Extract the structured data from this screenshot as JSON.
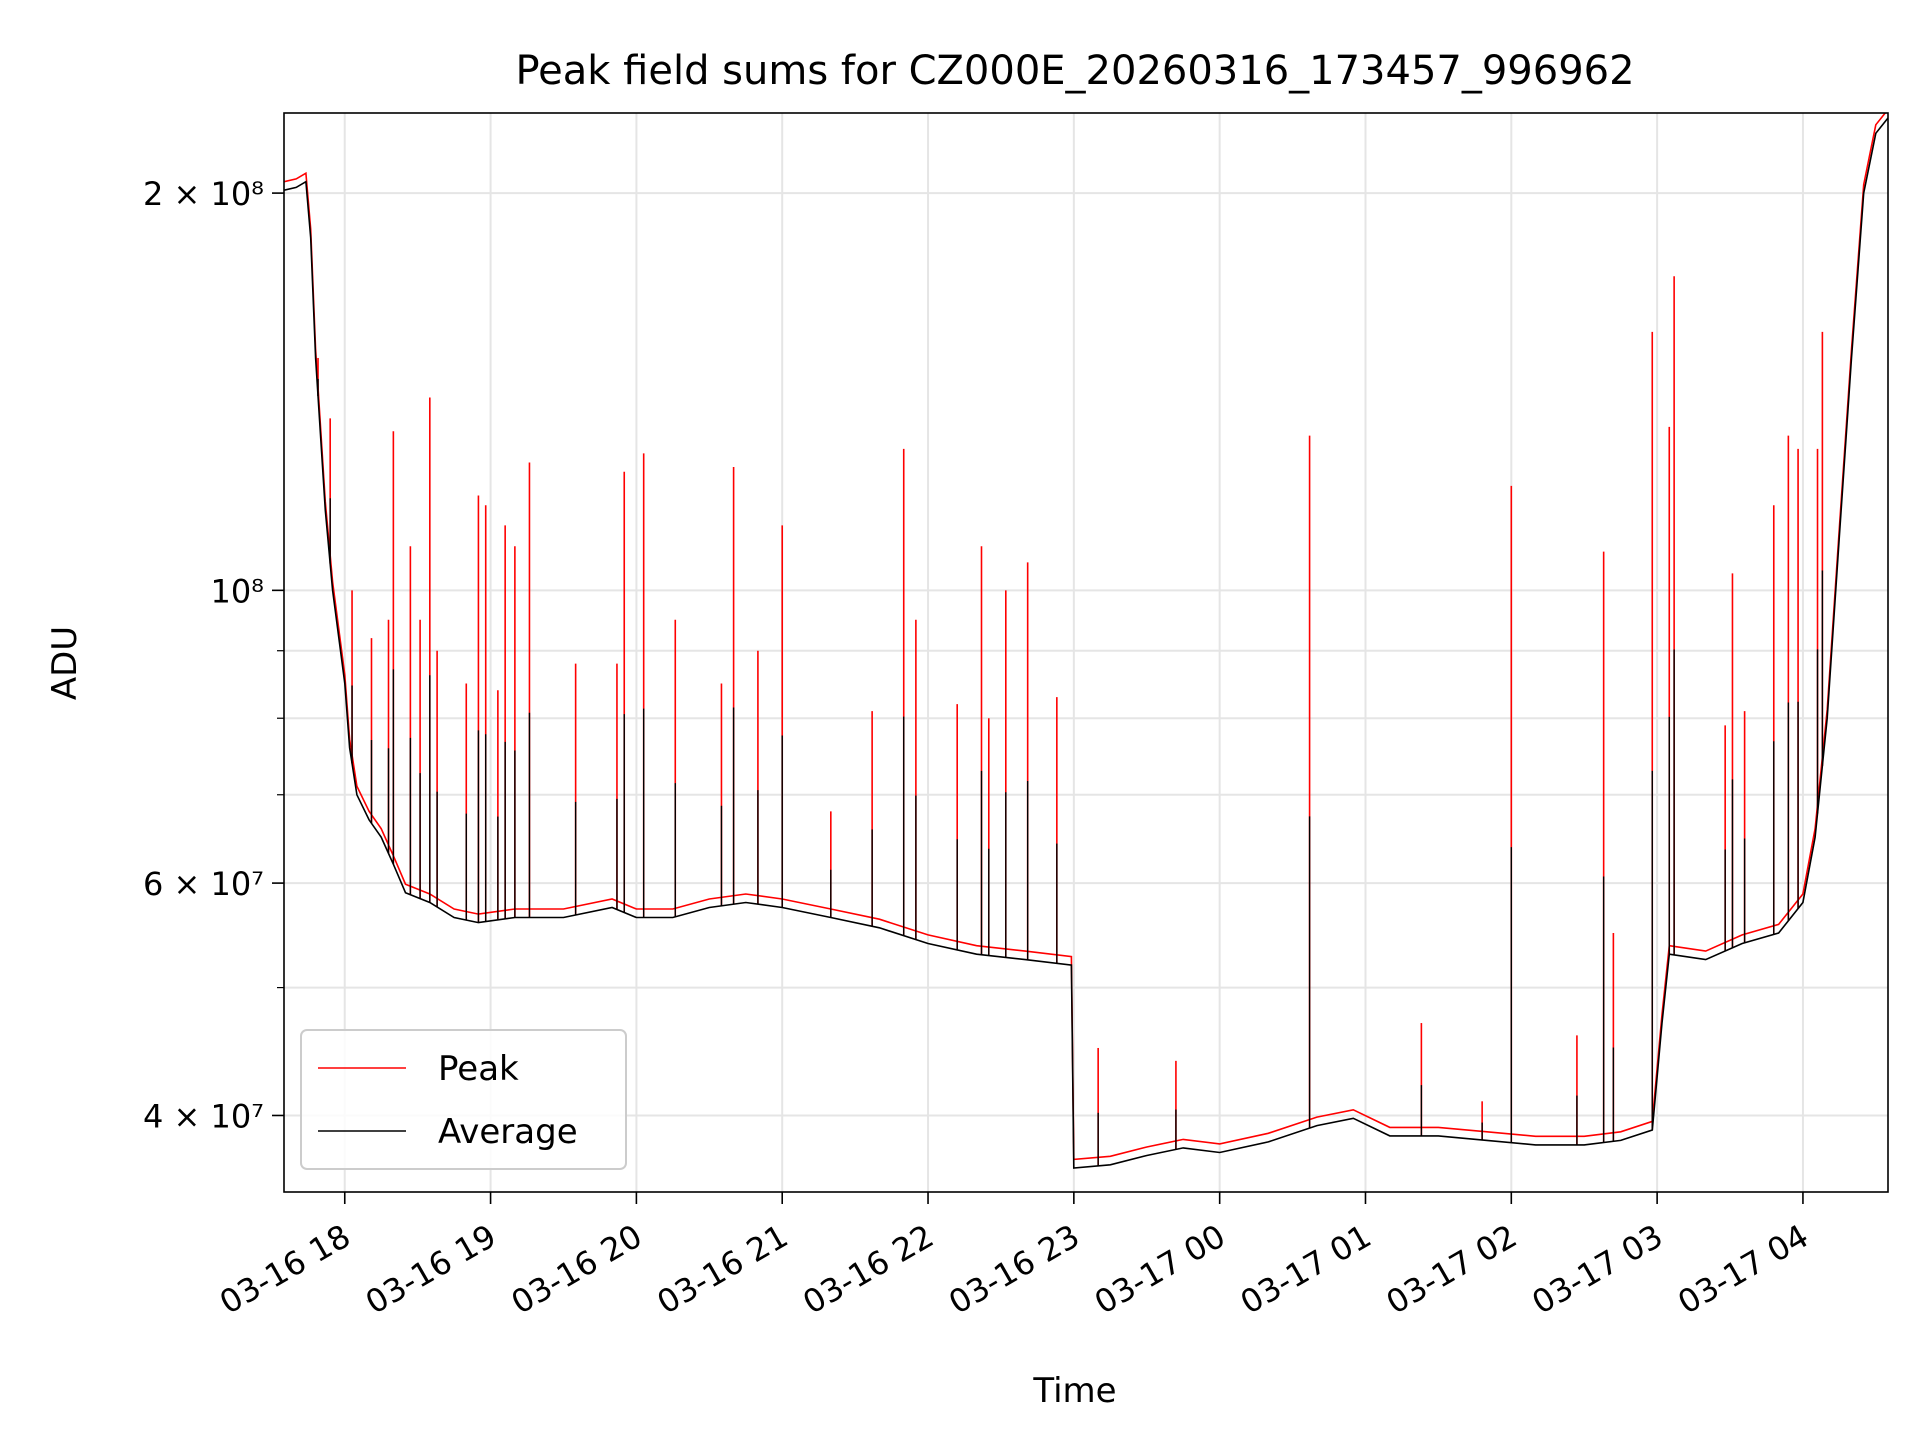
{
  "chart_data": {
    "type": "line",
    "title": "Peak field sums for CZ000E_20260316_173457_996962",
    "xlabel": "Time",
    "ylabel": "ADU",
    "x_range": [
      "2026-03-16T17:35:00",
      "2026-03-17T04:35:00"
    ],
    "y_scale": "log",
    "ylim": [
      35000000,
      230000000
    ],
    "grid": true,
    "legend_position": "lower-left",
    "x_ticks": [
      {
        "t": "2026-03-16T18:00:00",
        "label": "03-16 18"
      },
      {
        "t": "2026-03-16T19:00:00",
        "label": "03-16 19"
      },
      {
        "t": "2026-03-16T20:00:00",
        "label": "03-16 20"
      },
      {
        "t": "2026-03-16T21:00:00",
        "label": "03-16 21"
      },
      {
        "t": "2026-03-16T22:00:00",
        "label": "03-16 22"
      },
      {
        "t": "2026-03-16T23:00:00",
        "label": "03-16 23"
      },
      {
        "t": "2026-03-17T00:00:00",
        "label": "03-17 00"
      },
      {
        "t": "2026-03-17T01:00:00",
        "label": "03-17 01"
      },
      {
        "t": "2026-03-17T02:00:00",
        "label": "03-17 02"
      },
      {
        "t": "2026-03-17T03:00:00",
        "label": "03-17 03"
      },
      {
        "t": "2026-03-17T04:00:00",
        "label": "03-17 04"
      }
    ],
    "y_ticks": [
      {
        "value": 200000000,
        "label": "2 × 10⁸"
      },
      {
        "value": 100000000,
        "label": "10⁸"
      },
      {
        "value": 60000000,
        "label": "6 × 10⁷"
      },
      {
        "value": 40000000,
        "label": "4 × 10⁷"
      }
    ],
    "y_minor_ticks": [
      50000000,
      70000000,
      80000000,
      90000000
    ],
    "series": [
      {
        "name": "Average",
        "color": "#000000",
        "points": [
          [
            "2026-03-16T17:35:00",
            201000000
          ],
          [
            "2026-03-16T17:40:00",
            202000000
          ],
          [
            "2026-03-16T17:44:00",
            204000000
          ],
          [
            "2026-03-16T17:46:00",
            185000000
          ],
          [
            "2026-03-16T17:48:00",
            150000000
          ],
          [
            "2026-03-16T17:52:00",
            115000000
          ],
          [
            "2026-03-16T17:55:00",
            100000000
          ],
          [
            "2026-03-16T18:00:00",
            85000000
          ],
          [
            "2026-03-16T18:02:00",
            76000000
          ],
          [
            "2026-03-16T18:05:00",
            70000000
          ],
          [
            "2026-03-16T18:10:00",
            67000000
          ],
          [
            "2026-03-16T18:15:00",
            65000000
          ],
          [
            "2026-03-16T18:20:00",
            62000000
          ],
          [
            "2026-03-16T18:25:00",
            59000000
          ],
          [
            "2026-03-16T18:35:00",
            58000000
          ],
          [
            "2026-03-16T18:45:00",
            56500000
          ],
          [
            "2026-03-16T18:55:00",
            56000000
          ],
          [
            "2026-03-16T19:10:00",
            56500000
          ],
          [
            "2026-03-16T19:30:00",
            56500000
          ],
          [
            "2026-03-16T19:50:00",
            57500000
          ],
          [
            "2026-03-16T20:00:00",
            56500000
          ],
          [
            "2026-03-16T20:15:00",
            56500000
          ],
          [
            "2026-03-16T20:30:00",
            57500000
          ],
          [
            "2026-03-16T20:45:00",
            58000000
          ],
          [
            "2026-03-16T21:00:00",
            57500000
          ],
          [
            "2026-03-16T21:20:00",
            56500000
          ],
          [
            "2026-03-16T21:40:00",
            55500000
          ],
          [
            "2026-03-16T22:00:00",
            54000000
          ],
          [
            "2026-03-16T22:20:00",
            53000000
          ],
          [
            "2026-03-16T22:40:00",
            52500000
          ],
          [
            "2026-03-16T22:59:00",
            52000000
          ],
          [
            "2026-03-16T23:00:00",
            36500000
          ],
          [
            "2026-03-16T23:15:00",
            36700000
          ],
          [
            "2026-03-16T23:30:00",
            37300000
          ],
          [
            "2026-03-16T23:45:00",
            37800000
          ],
          [
            "2026-03-17T00:00:00",
            37500000
          ],
          [
            "2026-03-17T00:20:00",
            38200000
          ],
          [
            "2026-03-17T00:40:00",
            39300000
          ],
          [
            "2026-03-17T00:55:00",
            39800000
          ],
          [
            "2026-03-17T01:10:00",
            38600000
          ],
          [
            "2026-03-17T01:30:00",
            38600000
          ],
          [
            "2026-03-17T01:50:00",
            38300000
          ],
          [
            "2026-03-17T02:10:00",
            38000000
          ],
          [
            "2026-03-17T02:30:00",
            38000000
          ],
          [
            "2026-03-17T02:45:00",
            38300000
          ],
          [
            "2026-03-17T02:58:00",
            39000000
          ],
          [
            "2026-03-17T03:02:00",
            47000000
          ],
          [
            "2026-03-17T03:05:00",
            53000000
          ],
          [
            "2026-03-17T03:20:00",
            52500000
          ],
          [
            "2026-03-17T03:35:00",
            54000000
          ],
          [
            "2026-03-17T03:50:00",
            55000000
          ],
          [
            "2026-03-17T04:00:00",
            58000000
          ],
          [
            "2026-03-17T04:05:00",
            65000000
          ],
          [
            "2026-03-17T04:10:00",
            80000000
          ],
          [
            "2026-03-17T04:15:00",
            110000000
          ],
          [
            "2026-03-17T04:20:00",
            150000000
          ],
          [
            "2026-03-17T04:25:00",
            200000000
          ],
          [
            "2026-03-17T04:30:00",
            222000000
          ],
          [
            "2026-03-17T04:35:00",
            228000000
          ]
        ]
      },
      {
        "name": "Peak",
        "color": "#ff0000",
        "spikes": [
          [
            "2026-03-16T17:49:00",
            150000000
          ],
          [
            "2026-03-16T17:54:00",
            135000000
          ],
          [
            "2026-03-16T18:03:00",
            100000000
          ],
          [
            "2026-03-16T18:11:00",
            92000000
          ],
          [
            "2026-03-16T18:18:00",
            95000000
          ],
          [
            "2026-03-16T18:20:00",
            132000000
          ],
          [
            "2026-03-16T18:27:00",
            108000000
          ],
          [
            "2026-03-16T18:31:00",
            95000000
          ],
          [
            "2026-03-16T18:35:00",
            140000000
          ],
          [
            "2026-03-16T18:38:00",
            90000000
          ],
          [
            "2026-03-16T18:50:00",
            85000000
          ],
          [
            "2026-03-16T18:55:00",
            118000000
          ],
          [
            "2026-03-16T18:58:00",
            116000000
          ],
          [
            "2026-03-16T19:03:00",
            84000000
          ],
          [
            "2026-03-16T19:06:00",
            112000000
          ],
          [
            "2026-03-16T19:10:00",
            108000000
          ],
          [
            "2026-03-16T19:16:00",
            125000000
          ],
          [
            "2026-03-16T19:35:00",
            88000000
          ],
          [
            "2026-03-16T19:52:00",
            88000000
          ],
          [
            "2026-03-16T19:55:00",
            123000000
          ],
          [
            "2026-03-16T20:03:00",
            127000000
          ],
          [
            "2026-03-16T20:16:00",
            95000000
          ],
          [
            "2026-03-16T20:35:00",
            85000000
          ],
          [
            "2026-03-16T20:40:00",
            124000000
          ],
          [
            "2026-03-16T20:50:00",
            90000000
          ],
          [
            "2026-03-16T21:00:00",
            112000000
          ],
          [
            "2026-03-16T21:20:00",
            68000000
          ],
          [
            "2026-03-16T21:37:00",
            81000000
          ],
          [
            "2026-03-16T21:50:00",
            128000000
          ],
          [
            "2026-03-16T21:55:00",
            95000000
          ],
          [
            "2026-03-16T22:12:00",
            82000000
          ],
          [
            "2026-03-16T22:22:00",
            108000000
          ],
          [
            "2026-03-16T22:25:00",
            80000000
          ],
          [
            "2026-03-16T22:32:00",
            100000000
          ],
          [
            "2026-03-16T22:41:00",
            105000000
          ],
          [
            "2026-03-16T22:53:00",
            83000000
          ],
          [
            "2026-03-16T23:10:00",
            45000000
          ],
          [
            "2026-03-16T23:42:00",
            44000000
          ],
          [
            "2026-03-17T00:37:00",
            131000000
          ],
          [
            "2026-03-17T01:23:00",
            47000000
          ],
          [
            "2026-03-17T01:48:00",
            41000000
          ],
          [
            "2026-03-17T02:00:00",
            120000000
          ],
          [
            "2026-03-17T02:27:00",
            46000000
          ],
          [
            "2026-03-17T02:38:00",
            107000000
          ],
          [
            "2026-03-17T02:42:00",
            55000000
          ],
          [
            "2026-03-17T02:58:00",
            157000000
          ],
          [
            "2026-03-17T03:05:00",
            133000000
          ],
          [
            "2026-03-17T03:07:00",
            173000000
          ],
          [
            "2026-03-17T03:28:00",
            79000000
          ],
          [
            "2026-03-17T03:31:00",
            103000000
          ],
          [
            "2026-03-17T03:36:00",
            81000000
          ],
          [
            "2026-03-17T03:48:00",
            116000000
          ],
          [
            "2026-03-17T03:54:00",
            131000000
          ],
          [
            "2026-03-17T03:58:00",
            128000000
          ],
          [
            "2026-03-17T04:06:00",
            128000000
          ],
          [
            "2026-03-17T04:08:00",
            157000000
          ]
        ]
      }
    ],
    "legend": [
      {
        "label": "Peak",
        "color": "#ff0000"
      },
      {
        "label": "Average",
        "color": "#000000"
      }
    ]
  }
}
